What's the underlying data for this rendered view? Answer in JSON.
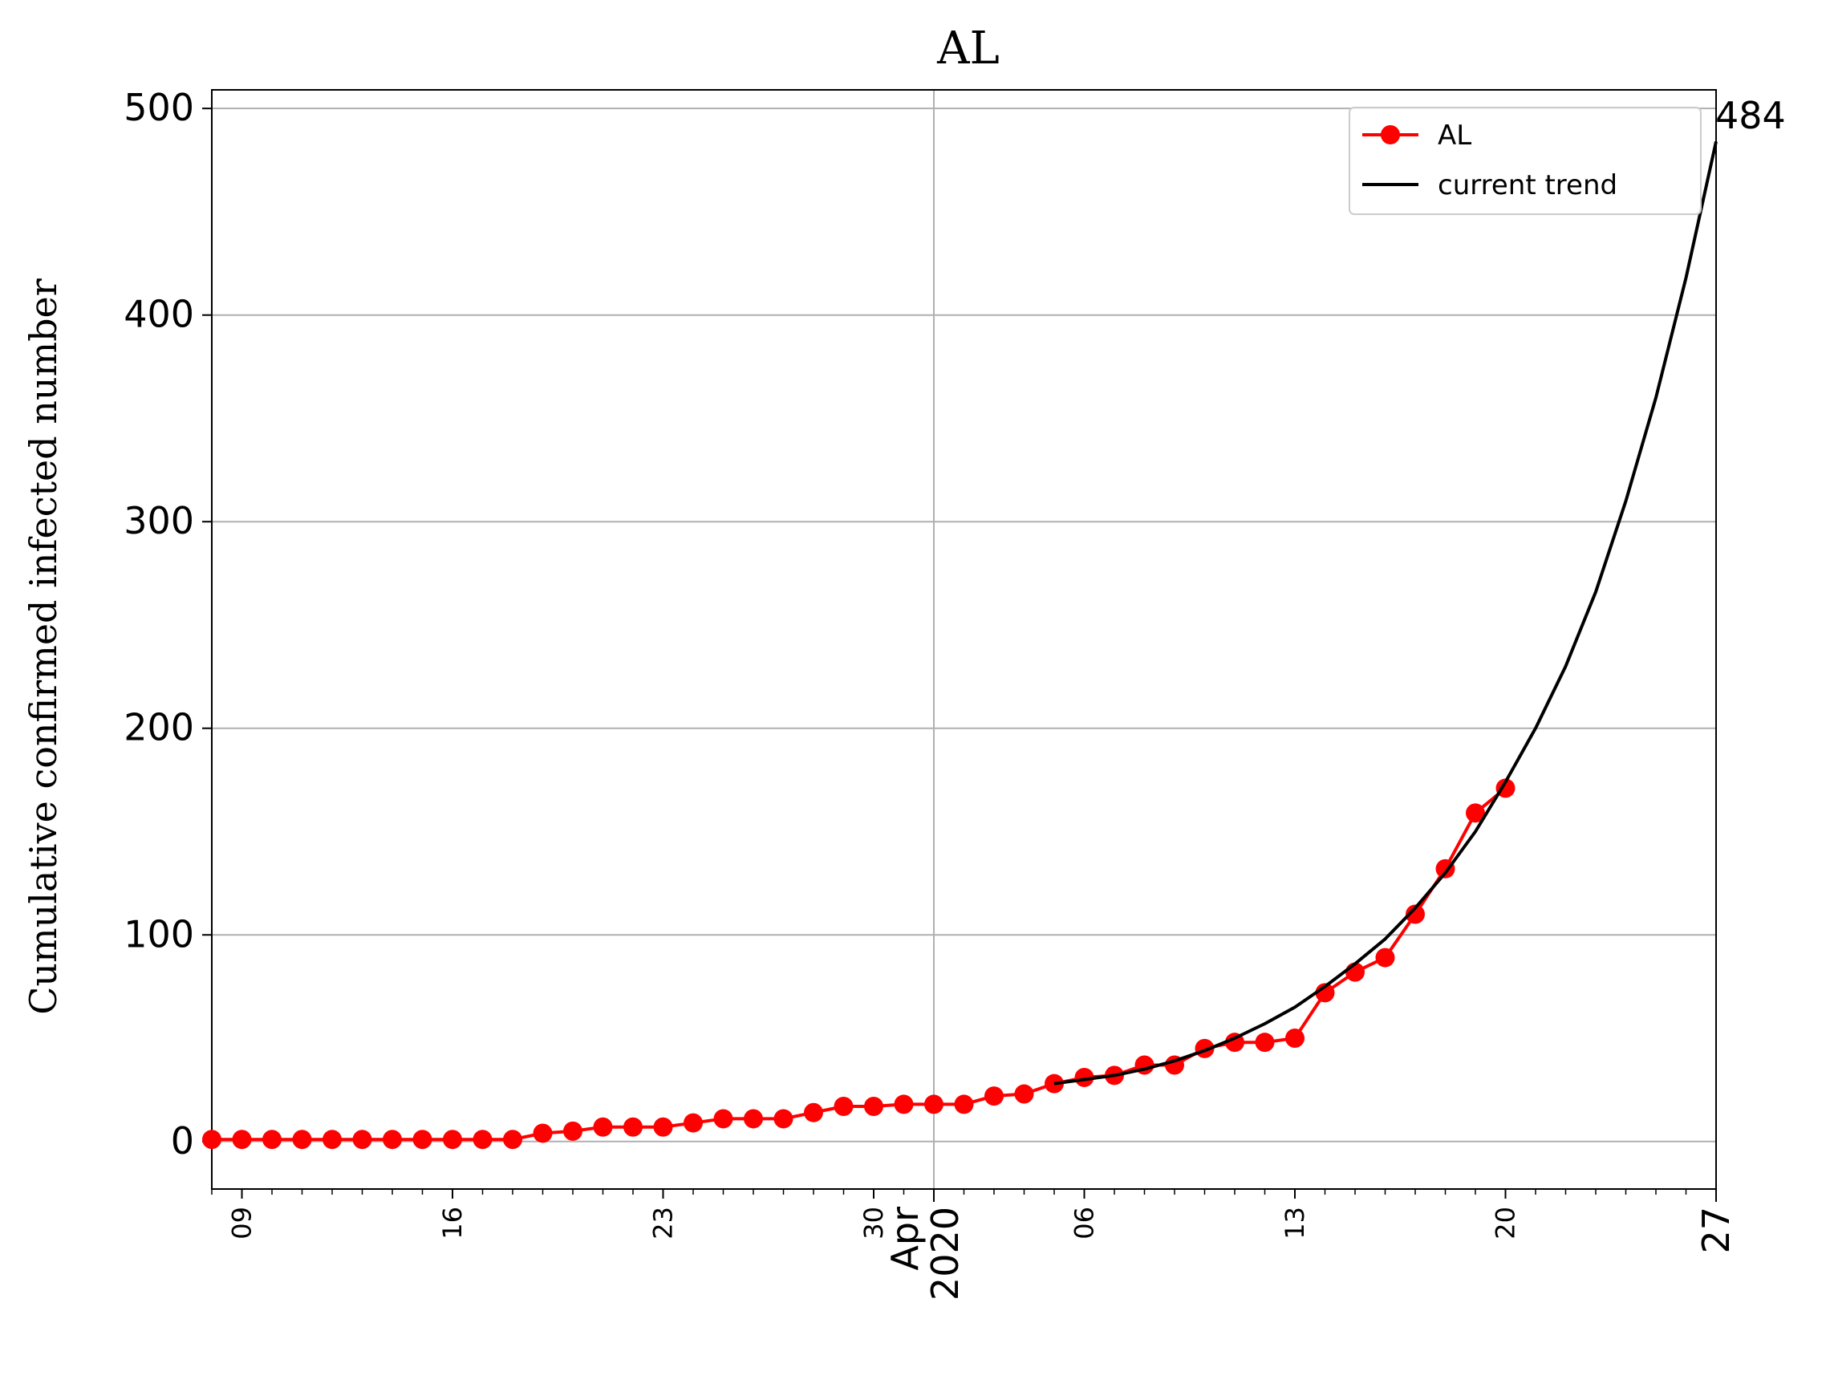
{
  "chart_data": {
    "type": "line",
    "title": "AL",
    "xlabel": "",
    "ylabel": "Cumulative confirmed infected number",
    "x_axis": {
      "range": [
        "2020-03-08",
        "2020-04-27"
      ],
      "major_ticks": [
        {
          "date": "2020-03-09",
          "label": "09"
        },
        {
          "date": "2020-03-16",
          "label": "16"
        },
        {
          "date": "2020-03-23",
          "label": "23"
        },
        {
          "date": "2020-03-30",
          "label": "30"
        },
        {
          "date": "2020-04-06",
          "label": "06"
        },
        {
          "date": "2020-04-13",
          "label": "13"
        },
        {
          "date": "2020-04-20",
          "label": "20"
        }
      ],
      "month_tick": {
        "date": "2020-04-01",
        "month": "Apr",
        "year": "2020"
      },
      "end_tick": {
        "date": "2020-04-27",
        "label": "27"
      }
    },
    "ylim": [
      -23,
      509
    ],
    "y_ticks": [
      0,
      100,
      200,
      300,
      400,
      500
    ],
    "grid": true,
    "legend_position": "top-right",
    "end_annotation": "484",
    "series": [
      {
        "name": "AL",
        "color": "#ff0000",
        "marker": "circle",
        "x": [
          "2020-03-08",
          "2020-03-09",
          "2020-03-10",
          "2020-03-11",
          "2020-03-12",
          "2020-03-13",
          "2020-03-14",
          "2020-03-15",
          "2020-03-16",
          "2020-03-17",
          "2020-03-18",
          "2020-03-19",
          "2020-03-20",
          "2020-03-21",
          "2020-03-22",
          "2020-03-23",
          "2020-03-24",
          "2020-03-25",
          "2020-03-26",
          "2020-03-27",
          "2020-03-28",
          "2020-03-29",
          "2020-03-30",
          "2020-03-31",
          "2020-04-01",
          "2020-04-02",
          "2020-04-03",
          "2020-04-04",
          "2020-04-05",
          "2020-04-06",
          "2020-04-07",
          "2020-04-08",
          "2020-04-09",
          "2020-04-10",
          "2020-04-11",
          "2020-04-12",
          "2020-04-13",
          "2020-04-14",
          "2020-04-15",
          "2020-04-16",
          "2020-04-17",
          "2020-04-18",
          "2020-04-19",
          "2020-04-20"
        ],
        "y": [
          1,
          1,
          1,
          1,
          1,
          1,
          1,
          1,
          1,
          1,
          1,
          4,
          5,
          7,
          7,
          7,
          9,
          11,
          11,
          11,
          14,
          17,
          17,
          18,
          18,
          18,
          22,
          23,
          28,
          31,
          32,
          37,
          37,
          45,
          48,
          48,
          50,
          72,
          82,
          89,
          110,
          132,
          159,
          171
        ]
      },
      {
        "name": "current trend",
        "color": "#000000",
        "marker": "none",
        "x": [
          "2020-04-05",
          "2020-04-06",
          "2020-04-07",
          "2020-04-08",
          "2020-04-09",
          "2020-04-10",
          "2020-04-11",
          "2020-04-12",
          "2020-04-13",
          "2020-04-14",
          "2020-04-15",
          "2020-04-16",
          "2020-04-17",
          "2020-04-18",
          "2020-04-19",
          "2020-04-20",
          "2020-04-21",
          "2020-04-22",
          "2020-04-23",
          "2020-04-24",
          "2020-04-25",
          "2020-04-26",
          "2020-04-27"
        ],
        "y": [
          28,
          30,
          32,
          35,
          39,
          44,
          50,
          57,
          65,
          75,
          86,
          98,
          113,
          130,
          150,
          174,
          200,
          230,
          266,
          310,
          360,
          418,
          484
        ]
      }
    ]
  }
}
